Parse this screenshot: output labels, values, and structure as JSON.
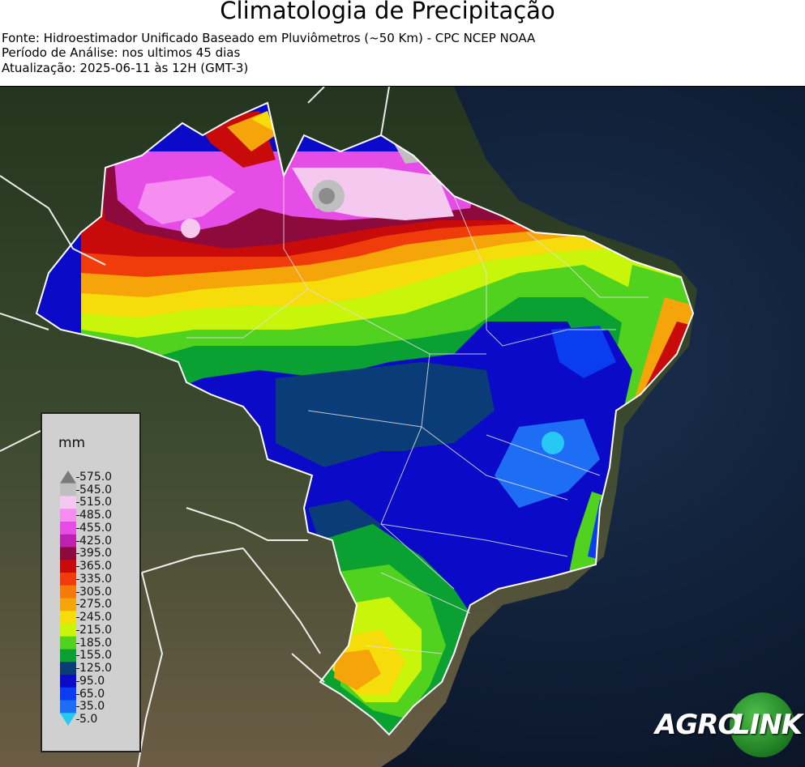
{
  "header": {
    "title": "Climatologia de Precipitação",
    "source": "Fonte: Hidroestimador Unificado Baseado em Pluviômetros (~50 Km) - CPC NCEP NOAA",
    "period": "Período de Análise: nos ultimos 45 dias",
    "updated": "Atualização: 2025-06-11 às 12H (GMT-3)"
  },
  "legend": {
    "unit": "mm",
    "levels": [
      "575.0",
      "545.0",
      "515.0",
      "485.0",
      "455.0",
      "425.0",
      "395.0",
      "365.0",
      "335.0",
      "305.0",
      "275.0",
      "245.0",
      "215.0",
      "185.0",
      "155.0",
      "125.0",
      "95.0",
      "65.0",
      "35.0",
      "5.0"
    ],
    "colors": [
      "#8c8c8c",
      "#bfbfbf",
      "#f5c8f0",
      "#f58ef0",
      "#e64de6",
      "#c020b0",
      "#8c0a3c",
      "#c80a0a",
      "#f03c0a",
      "#f57a0a",
      "#f5a50a",
      "#f5dc0a",
      "#c8f50a",
      "#50d21e",
      "#0aa032",
      "#0a3c78",
      "#0a0ac8",
      "#0a3cf0",
      "#1e6ef5",
      "#28c8f5"
    ],
    "over_color": "#7a7a7a",
    "under_color": "#28c8f5"
  },
  "map": {
    "ocean": "#0d1a30",
    "land": "#3a4a2a",
    "land_south": "#7a6a50",
    "border_color": "#ffffff"
  },
  "logo": {
    "part1": "AGRO",
    "part2": "LINK",
    "color": "#1d7a21"
  }
}
